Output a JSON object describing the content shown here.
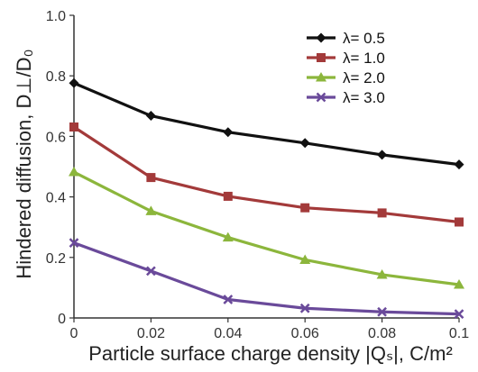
{
  "chart_data": {
    "type": "line",
    "xlabel": "Particle surface charge density |Qₛ|, C/m²",
    "ylabel": "Hindered diffusion, D⊥/D₀",
    "x": [
      0,
      0.02,
      0.04,
      0.06,
      0.08,
      0.1
    ],
    "xlim": [
      0,
      0.1
    ],
    "ylim": [
      0,
      1.0
    ],
    "x_ticks": [
      "0",
      "0.02",
      "0.04",
      "0.06",
      "0.08",
      "0.1"
    ],
    "y_ticks": [
      "0",
      "0.2",
      "0.4",
      "0.6",
      "0.8",
      "1.0"
    ],
    "grid": false,
    "legend_position": "top-right",
    "series": [
      {
        "name": "λ= 0.5",
        "values": [
          0.776,
          0.668,
          0.614,
          0.578,
          0.539,
          0.507
        ],
        "color": "#111111",
        "marker": "diamond"
      },
      {
        "name": "λ= 1.0",
        "values": [
          0.631,
          0.464,
          0.402,
          0.364,
          0.347,
          0.317
        ],
        "color": "#a33a3a",
        "marker": "square"
      },
      {
        "name": "λ= 2.0",
        "values": [
          0.482,
          0.353,
          0.266,
          0.192,
          0.143,
          0.11
        ],
        "color": "#8cb63c",
        "marker": "triangle"
      },
      {
        "name": "λ= 3.0",
        "values": [
          0.248,
          0.155,
          0.061,
          0.032,
          0.02,
          0.013
        ],
        "color": "#6a4a9a",
        "marker": "x"
      }
    ]
  }
}
